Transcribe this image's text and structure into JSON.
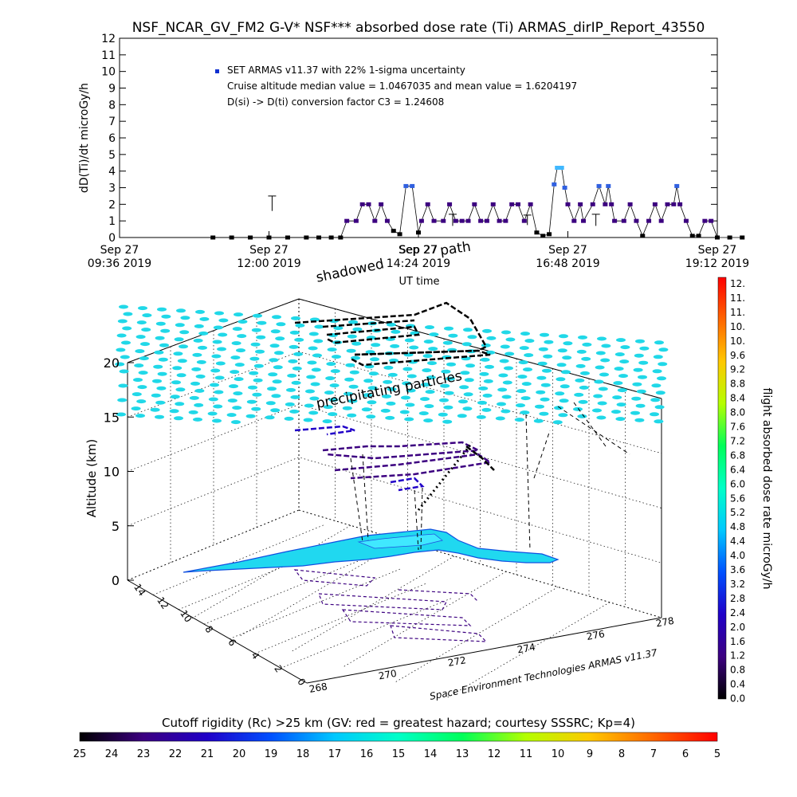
{
  "chart_data": [
    {
      "type": "scatter",
      "title": "NSF_NCAR_GV_FM2 G-V* NSF*** absorbed dose rate (Ti) ARMAS_dirIP_Report_43550",
      "xlabel": "UT time",
      "ylabel": "dD(Ti)/dt microGy/h",
      "ylim": [
        0,
        12
      ],
      "yticks": [
        "0",
        "1",
        "2",
        "3",
        "4",
        "5",
        "6",
        "7",
        "8",
        "9",
        "10",
        "11",
        "12"
      ],
      "xticks": [
        {
          "line1": "Sep 27",
          "line2": "09:36 2019"
        },
        {
          "line1": "Sep 27",
          "line2": "12:00 2019"
        },
        {
          "line1": "Sep 27",
          "line2": "14:24 2019"
        },
        {
          "line1": "Sep 27",
          "line2": "16:48 2019"
        },
        {
          "line1": "Sep 27",
          "line2": "19:12 2019"
        }
      ],
      "legend": {
        "entry": "SET ARMAS v11.37 with 22% 1-sigma uncertainty",
        "note1": "Cruise altitude median value = 1.0467035 and mean value = 1.6204197",
        "note2": "D(si) -> D(ti) conversion factor C3 = 1.24608",
        "placement": "top-left",
        "marker_color": "#1030d0"
      },
      "x_unit": "hours UT",
      "series": [
        {
          "points": [
            [
              11.1,
              0
            ],
            [
              11.4,
              0
            ],
            [
              11.7,
              0
            ],
            [
              12.0,
              0
            ],
            [
              12.3,
              0
            ],
            [
              12.6,
              0
            ],
            [
              12.8,
              0
            ],
            [
              13.0,
              0
            ],
            [
              13.15,
              0
            ],
            [
              13.25,
              1
            ],
            [
              13.4,
              1
            ],
            [
              13.5,
              2
            ],
            [
              13.6,
              2
            ],
            [
              13.7,
              1
            ],
            [
              13.8,
              2
            ],
            [
              13.9,
              1
            ],
            [
              14.0,
              0.4
            ],
            [
              14.1,
              0.2
            ],
            [
              14.2,
              3.1
            ],
            [
              14.3,
              3.1
            ],
            [
              14.4,
              0.3
            ],
            [
              14.45,
              1
            ],
            [
              14.55,
              2
            ],
            [
              14.65,
              1
            ],
            [
              14.8,
              1
            ],
            [
              14.9,
              2
            ],
            [
              15.0,
              1
            ],
            [
              15.1,
              1
            ],
            [
              15.2,
              1
            ],
            [
              15.3,
              2
            ],
            [
              15.4,
              1
            ],
            [
              15.5,
              1
            ],
            [
              15.6,
              2
            ],
            [
              15.7,
              1
            ],
            [
              15.8,
              1
            ],
            [
              15.9,
              2
            ],
            [
              16.0,
              2
            ],
            [
              16.1,
              1
            ],
            [
              16.2,
              2
            ],
            [
              16.3,
              0.3
            ],
            [
              16.4,
              0.1
            ],
            [
              16.5,
              0.2
            ],
            [
              16.58,
              3.2
            ],
            [
              16.63,
              4.2
            ],
            [
              16.7,
              4.2
            ],
            [
              16.75,
              3
            ],
            [
              16.8,
              2
            ],
            [
              16.9,
              1
            ],
            [
              17.0,
              2
            ],
            [
              17.05,
              1
            ],
            [
              17.2,
              2
            ],
            [
              17.3,
              3.1
            ],
            [
              17.4,
              2
            ],
            [
              17.45,
              3.1
            ],
            [
              17.5,
              2
            ],
            [
              17.55,
              1
            ],
            [
              17.7,
              1
            ],
            [
              17.8,
              2
            ],
            [
              17.9,
              1
            ],
            [
              18.0,
              0.1
            ],
            [
              18.1,
              1
            ],
            [
              18.2,
              2
            ],
            [
              18.3,
              1
            ],
            [
              18.4,
              2
            ],
            [
              18.5,
              2
            ],
            [
              18.55,
              3.1
            ],
            [
              18.6,
              2
            ],
            [
              18.7,
              1
            ],
            [
              18.8,
              0.1
            ],
            [
              18.9,
              0.1
            ],
            [
              19.0,
              1
            ],
            [
              19.1,
              1
            ],
            [
              19.2,
              0
            ],
            [
              19.4,
              0
            ],
            [
              19.6,
              0
            ]
          ],
          "error_bars": [
            [
              12.05,
              2.05,
              0.45
            ],
            [
              14.95,
              1.05,
              0.35
            ],
            [
              16.15,
              1.05,
              0.3
            ],
            [
              17.25,
              1.05,
              0.35
            ]
          ]
        }
      ]
    },
    {
      "type": "scatter",
      "zlabel": "Altitude (km)",
      "zticks": [
        "0",
        "5",
        "10",
        "15",
        "20"
      ],
      "x_ticks": [
        "268",
        "270",
        "272",
        "274",
        "276",
        "278"
      ],
      "y_ticks": [
        "0",
        "2",
        "4",
        "6",
        "8",
        "10",
        "12",
        "14"
      ],
      "annotations": {
        "shadowed": "shadowed",
        "path": "path",
        "sep_overlap": "Sep 27",
        "precipitating": "precipitating particles",
        "credit": "Space Environment Technologies ARMAS v11.37"
      },
      "flight_altitude_km": 12.5,
      "top_layer_altitude_km": 20.5
    }
  ],
  "dose_colorbar": {
    "label": "flight absorbed dose rate microGy/h",
    "ticks": [
      "12.",
      "11.",
      "11.",
      "10.",
      "10.",
      "9.6",
      "9.2",
      "8.8",
      "8.4",
      "8.0",
      "7.6",
      "7.2",
      "6.8",
      "6.4",
      "6.0",
      "5.6",
      "5.2",
      "4.8",
      "4.4",
      "4.0",
      "3.6",
      "3.2",
      "2.8",
      "2.4",
      "2.0",
      "1.6",
      "1.2",
      "0.8",
      "0.4",
      "0.0"
    ],
    "colors": [
      "#ff0000",
      "#ff6600",
      "#ffc800",
      "#b4ff00",
      "#00ff5a",
      "#00ffc8",
      "#00c8ff",
      "#0050ff",
      "#2000c8",
      "#3c0080",
      "#000000"
    ]
  },
  "rigidity_colorbar": {
    "label": "Cutoff rigidity (Rc) >25 km (GV: red = greatest hazard; courtesy SSSRC; Kp=4)",
    "ticks": [
      "25",
      "24",
      "23",
      "22",
      "21",
      "20",
      "19",
      "18",
      "17",
      "16",
      "15",
      "14",
      "13",
      "12",
      "11",
      "10",
      "9",
      "8",
      "7",
      "6",
      "5"
    ],
    "colors": [
      "#000000",
      "#3c0080",
      "#2000c8",
      "#0050ff",
      "#00c8ff",
      "#00ffc8",
      "#00ff5a",
      "#b4ff00",
      "#ffc800",
      "#ff6600",
      "#ff0000"
    ]
  }
}
